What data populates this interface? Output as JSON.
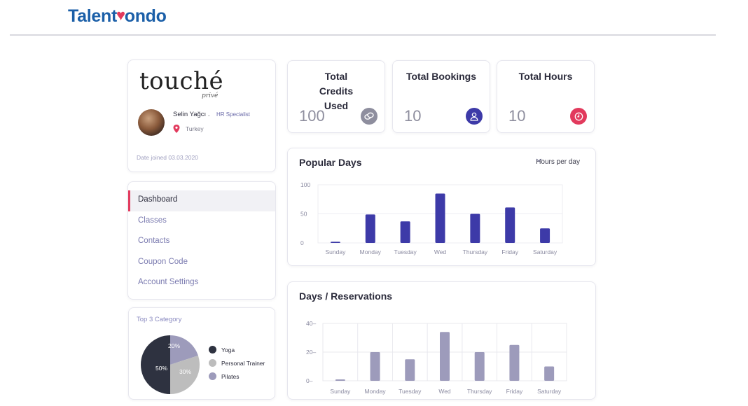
{
  "app": {
    "logo_part1": "Talent",
    "logo_part2": "ondo"
  },
  "profile": {
    "brand": "touché",
    "brand_sub": "privé",
    "name": "Selin Yağcı .",
    "role": "HR Specialist",
    "country": "Turkey",
    "joined": "Date joined 03.03.2020"
  },
  "nav": {
    "items": [
      {
        "label": "Dashboard",
        "active": true
      },
      {
        "label": "Classes",
        "active": false
      },
      {
        "label": "Contacts",
        "active": false
      },
      {
        "label": "Coupon Code",
        "active": false
      },
      {
        "label": "Account Settings",
        "active": false
      }
    ]
  },
  "category": {
    "title": "Top 3 Category",
    "legend": [
      {
        "label": "Yoga",
        "color": "#2e3240",
        "pct": 50
      },
      {
        "label": "Personal Trainer",
        "color": "#bdbdbd",
        "pct": 30
      },
      {
        "label": "Pilates",
        "color": "#9d9bbb",
        "pct": 20
      }
    ],
    "labels": [
      "50%",
      "30%",
      "20%"
    ]
  },
  "stats": [
    {
      "title": "Total Credits Used",
      "value": "100",
      "icon": "coins-icon",
      "icon_color": "#8e8e9e"
    },
    {
      "title": "Total Bookings",
      "value": "10",
      "icon": "user-icon",
      "icon_color": "#3d3aa8"
    },
    {
      "title": "Total Hours",
      "value": "10",
      "icon": "clock-icon",
      "icon_color": "#e23a5d"
    }
  ],
  "popular_days": {
    "title": "Popular Days",
    "dropdown": "Hours per day",
    "chart_data": {
      "type": "bar",
      "title": "Popular Days",
      "categories": [
        "Sunday",
        "Monday",
        "Tuesday",
        "Wed",
        "Thursday",
        "Friday",
        "Saturday"
      ],
      "values": [
        2,
        49,
        37,
        85,
        50,
        61,
        25
      ],
      "ylim": [
        0,
        100
      ],
      "yticks": [
        "100",
        "50",
        "0"
      ],
      "color": "#3d3aa8",
      "grid": true
    }
  },
  "reservations": {
    "title": "Days / Reservations",
    "chart_data": {
      "type": "bar",
      "title": "Days / Reservations",
      "categories": [
        "Sunday",
        "Monday",
        "Tuesday",
        "Wed",
        "Thursday",
        "Friday",
        "Saturday"
      ],
      "values": [
        1,
        20,
        15,
        34,
        20,
        25,
        10
      ],
      "ylim": [
        0,
        40
      ],
      "yticks": [
        "40",
        "20",
        "0"
      ],
      "color": "#9d9bbb",
      "grid": true
    }
  }
}
